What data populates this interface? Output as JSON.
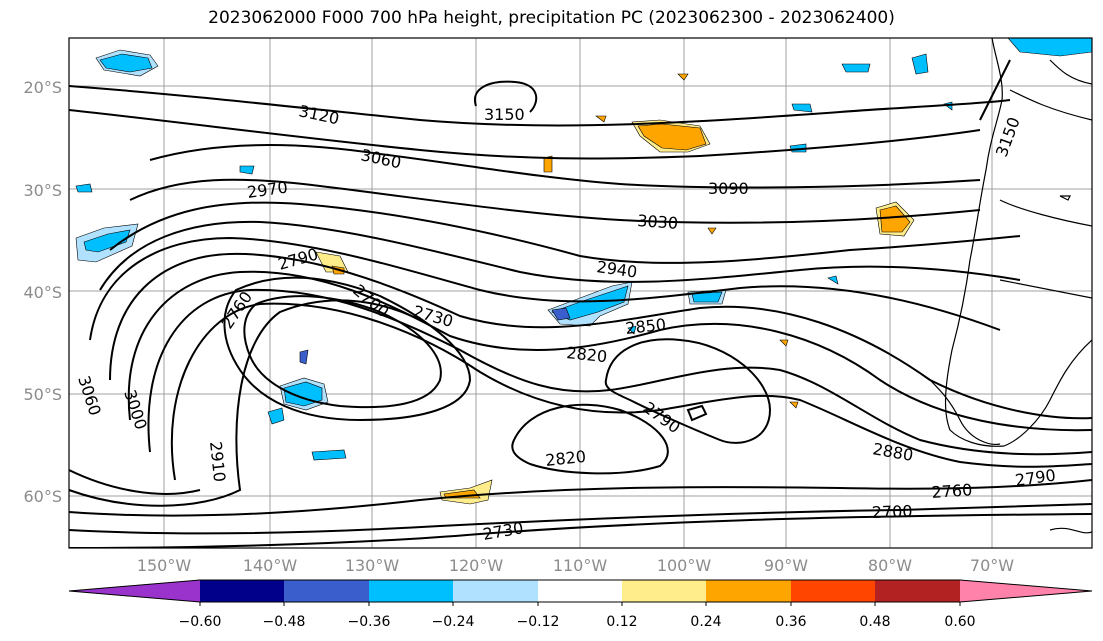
{
  "title": "2023062000 F000 700 hPa height, precipitation PC (2023062300 - 2023062400)",
  "lat_labels": [
    "20°S",
    "30°S",
    "40°S",
    "50°S",
    "60°S"
  ],
  "lon_labels": [
    "150°W",
    "140°W",
    "130°W",
    "120°W",
    "110°W",
    "100°W",
    "90°W",
    "80°W",
    "70°W"
  ],
  "contour_labels": [
    "3150",
    "3120",
    "3060",
    "3090",
    "2970",
    "3030",
    "2790",
    "2940",
    "2760",
    "2700",
    "2730",
    "2850",
    "2820",
    "3060",
    "3000",
    "2910",
    "2790",
    "2820",
    "2880",
    "2760",
    "2790",
    "2700",
    "2730",
    "3150"
  ],
  "colorbar": {
    "ticks": [
      "−0.60",
      "−0.48",
      "−0.36",
      "−0.24",
      "−0.12",
      "0.12",
      "0.24",
      "0.36",
      "0.48",
      "0.60"
    ],
    "colors": [
      "#9933cc",
      "#00008b",
      "#3a5fcd",
      "#00bfff",
      "#b0e2ff",
      "#ffffff",
      "#ffec8b",
      "#ffa500",
      "#ff4500",
      "#b22222",
      "#ff82ab"
    ]
  }
}
